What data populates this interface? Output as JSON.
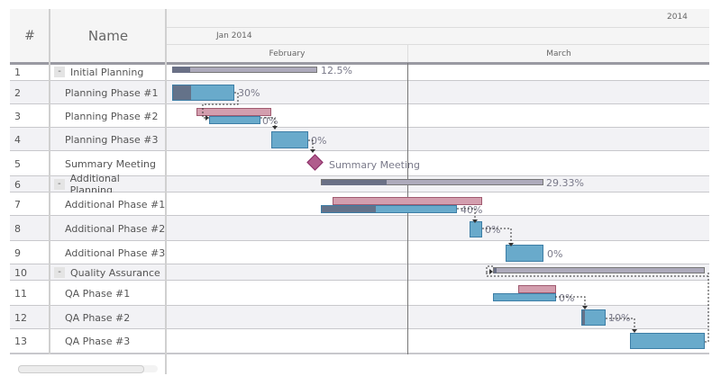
{
  "header": {
    "num_col": "#",
    "name_col": "Name",
    "year": "2014",
    "jan": "Jan 2014",
    "month1": "February",
    "month2": "March"
  },
  "rows": [
    {
      "num": "1",
      "name": "Initial Planning",
      "group": true,
      "label": "12.5%"
    },
    {
      "num": "2",
      "name": "Planning Phase #1",
      "group": false,
      "label": "30%"
    },
    {
      "num": "3",
      "name": "Planning Phase #2",
      "group": false,
      "label": "0%"
    },
    {
      "num": "4",
      "name": "Planning Phase #3",
      "group": false,
      "label": "0%"
    },
    {
      "num": "5",
      "name": "Summary Meeting",
      "group": false,
      "label": "Summary Meeting"
    },
    {
      "num": "6",
      "name": "Additional Planning",
      "group": true,
      "label": "29.33%"
    },
    {
      "num": "7",
      "name": "Additional Phase #1",
      "group": false,
      "label": "40%"
    },
    {
      "num": "8",
      "name": "Additional Phase #2",
      "group": false,
      "label": "0%"
    },
    {
      "num": "9",
      "name": "Additional Phase #3",
      "group": false,
      "label": "0%"
    },
    {
      "num": "10",
      "name": "Quality Assurance",
      "group": true,
      "label": ""
    },
    {
      "num": "11",
      "name": "QA Phase #1",
      "group": false,
      "label": "0%"
    },
    {
      "num": "12",
      "name": "QA Phase #2",
      "group": false,
      "label": "10%"
    },
    {
      "num": "13",
      "name": "QA Phase #3",
      "group": false,
      "label": ""
    }
  ],
  "collapse_symbol": "-",
  "colors": {
    "task": "#69aacb",
    "task_progress": "#647289",
    "baseline": "#d39eae",
    "group": "#adaabb",
    "group_progress": "#6a7086",
    "milestone": "#b05c8c"
  }
}
